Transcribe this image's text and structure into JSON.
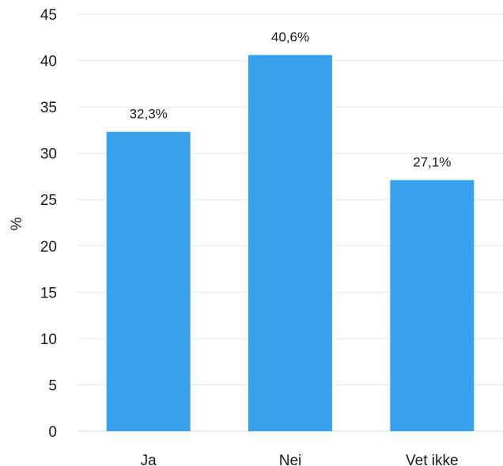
{
  "chart_data": {
    "type": "bar",
    "categories": [
      "Ja",
      "Nei",
      "Vet ikke"
    ],
    "values": [
      32.3,
      40.6,
      27.1
    ],
    "data_labels": [
      "32,3%",
      "40,6%",
      "27,1%"
    ],
    "ylabel": "%",
    "ylim": [
      0,
      45
    ],
    "yticks": [
      0,
      5,
      10,
      15,
      20,
      25,
      30,
      35,
      40,
      45
    ],
    "grid": true,
    "bar_color": "#36A2EB"
  }
}
